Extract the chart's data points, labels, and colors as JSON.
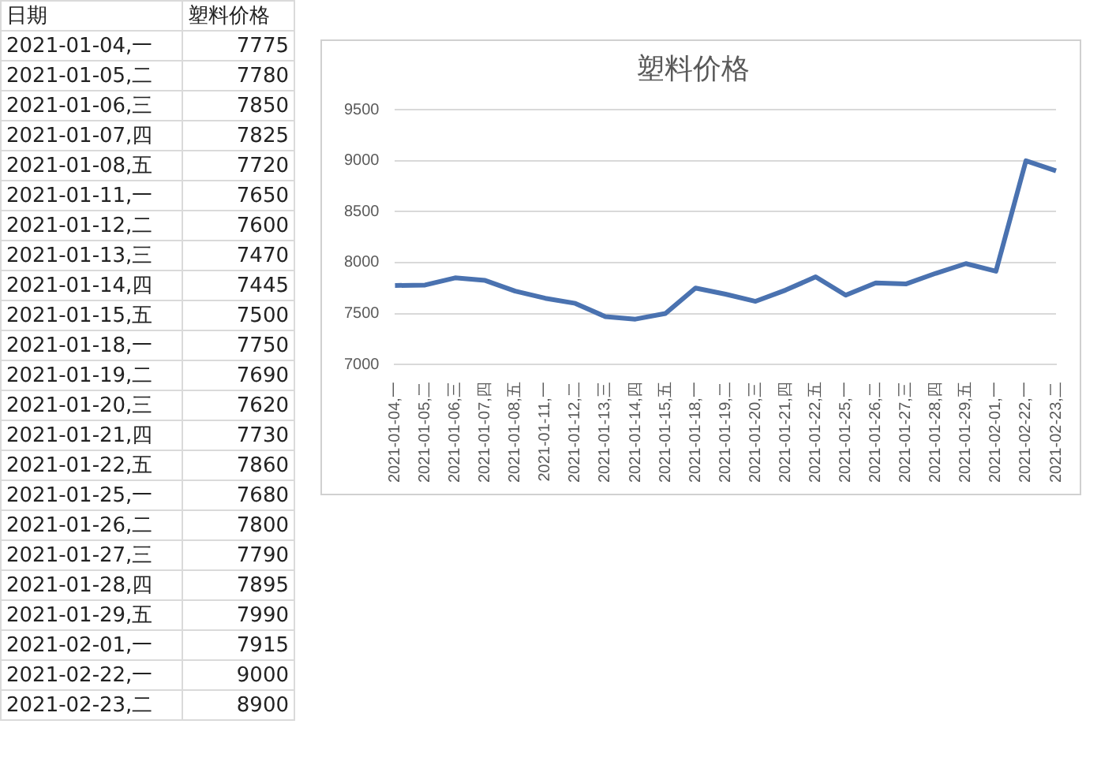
{
  "chart_data": [
    {
      "type": "other",
      "annotations": [
        "日期",
        "塑料价格"
      ],
      "categories": [
        "2021-01-04,一",
        "2021-01-05,二",
        "2021-01-06,三",
        "2021-01-07,四",
        "2021-01-08,五",
        "2021-01-11,一",
        "2021-01-12,二",
        "2021-01-13,三",
        "2021-01-14,四",
        "2021-01-15,五",
        "2021-01-18,一",
        "2021-01-19,二",
        "2021-01-20,三",
        "2021-01-21,四",
        "2021-01-22,五",
        "2021-01-25,一",
        "2021-01-26,二",
        "2021-01-27,三",
        "2021-01-28,四",
        "2021-01-29,五",
        "2021-02-01,一",
        "2021-02-22,一",
        "2021-02-23,二"
      ],
      "values": [
        7775,
        7780,
        7850,
        7825,
        7720,
        7650,
        7600,
        7470,
        7445,
        7500,
        7750,
        7690,
        7620,
        7730,
        7860,
        7680,
        7800,
        7790,
        7895,
        7990,
        7915,
        9000,
        8900
      ],
      "data_labels": true
    },
    {
      "type": "line",
      "title": "塑料价格",
      "categories": [
        "2021-01-04,一",
        "2021-01-05,二",
        "2021-01-06,三",
        "2021-01-07,四",
        "2021-01-08,五",
        "2021-01-11,一",
        "2021-01-12,二",
        "2021-01-13,三",
        "2021-01-14,四",
        "2021-01-15,五",
        "2021-01-18,一",
        "2021-01-19,二",
        "2021-01-20,三",
        "2021-01-21,四",
        "2021-01-22,五",
        "2021-01-25,一",
        "2021-01-26,二",
        "2021-01-27,三",
        "2021-01-28,四",
        "2021-01-29,五",
        "2021-02-01,一",
        "2021-02-22,一",
        "2021-02-23,二"
      ],
      "values": [
        7775,
        7780,
        7850,
        7825,
        7720,
        7650,
        7600,
        7470,
        7445,
        7500,
        7750,
        7690,
        7620,
        7730,
        7860,
        7680,
        7800,
        7790,
        7895,
        7990,
        7915,
        9000,
        8900
      ],
      "color": "#4a72b0",
      "ylim": [
        7000,
        9500
      ],
      "yticks": [
        7000,
        7500,
        8000,
        8500,
        9000,
        9500
      ],
      "grid": "y",
      "marker": "none",
      "line_style": "solid"
    }
  ]
}
